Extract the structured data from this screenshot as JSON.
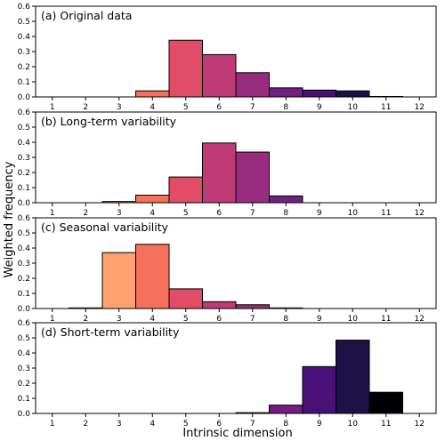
{
  "figure": {
    "ylabel": "Weighted frequency",
    "xlabel": "Intrinsic dimension"
  },
  "chart_data": [
    {
      "type": "bar",
      "title": "(a) Original data",
      "x": [
        1,
        2,
        3,
        4,
        5,
        6,
        7,
        8,
        9,
        10,
        11,
        12
      ],
      "values": [
        0,
        0,
        0,
        0.04,
        0.375,
        0.28,
        0.16,
        0.06,
        0.045,
        0.04,
        0.003,
        0
      ],
      "xlim": [
        0.5,
        12.5
      ],
      "ylim": [
        0,
        0.6
      ],
      "yticks": [
        "0.0",
        "0.1",
        "0.2",
        "0.3",
        "0.4",
        "0.5",
        "0.6"
      ],
      "xticks": [
        "1",
        "2",
        "3",
        "4",
        "5",
        "6",
        "7",
        "8",
        "9",
        "10",
        "11",
        "12"
      ]
    },
    {
      "type": "bar",
      "title": "(b) Long-term variability",
      "x": [
        1,
        2,
        3,
        4,
        5,
        6,
        7,
        8,
        9,
        10,
        11,
        12
      ],
      "values": [
        0,
        0,
        0.008,
        0.05,
        0.17,
        0.395,
        0.335,
        0.045,
        0,
        0,
        0,
        0
      ],
      "xlim": [
        0.5,
        12.5
      ],
      "ylim": [
        0,
        0.6
      ],
      "yticks": [
        "0.0",
        "0.1",
        "0.2",
        "0.3",
        "0.4",
        "0.5",
        "0.6"
      ],
      "xticks": [
        "1",
        "2",
        "3",
        "4",
        "5",
        "6",
        "7",
        "8",
        "9",
        "10",
        "11",
        "12"
      ]
    },
    {
      "type": "bar",
      "title": "(c) Seasonal variability",
      "x": [
        1,
        2,
        3,
        4,
        5,
        6,
        7,
        8,
        9,
        10,
        11,
        12
      ],
      "values": [
        0,
        0.004,
        0.37,
        0.425,
        0.13,
        0.045,
        0.025,
        0.004,
        0,
        0,
        0,
        0
      ],
      "xlim": [
        0.5,
        12.5
      ],
      "ylim": [
        0,
        0.6
      ],
      "yticks": [
        "0.0",
        "0.1",
        "0.2",
        "0.3",
        "0.4",
        "0.5",
        "0.6"
      ],
      "xticks": [
        "1",
        "2",
        "3",
        "4",
        "5",
        "6",
        "7",
        "8",
        "9",
        "10",
        "11",
        "12"
      ]
    },
    {
      "type": "bar",
      "title": "(d) Short-term variability",
      "x": [
        1,
        2,
        3,
        4,
        5,
        6,
        7,
        8,
        9,
        10,
        11,
        12
      ],
      "values": [
        0,
        0,
        0,
        0,
        0,
        0,
        0.005,
        0.055,
        0.31,
        0.485,
        0.14,
        0
      ],
      "xlim": [
        0.5,
        12.5
      ],
      "ylim": [
        0,
        0.6
      ],
      "yticks": [
        "0.0",
        "0.1",
        "0.2",
        "0.3",
        "0.4",
        "0.5",
        "0.6"
      ],
      "xticks": [
        "1",
        "2",
        "3",
        "4",
        "5",
        "6",
        "7",
        "8",
        "9",
        "10",
        "11",
        "12"
      ]
    }
  ],
  "colors": {
    "1": "#fff3d4",
    "2": "#fecf92",
    "3": "#fea16e",
    "4": "#f6705b",
    "5": "#e14d66",
    "6": "#c03a76",
    "7": "#982d80",
    "8": "#711f81",
    "9": "#4a1079",
    "10": "#1d1147",
    "11": "#000004",
    "12": "#000004"
  }
}
